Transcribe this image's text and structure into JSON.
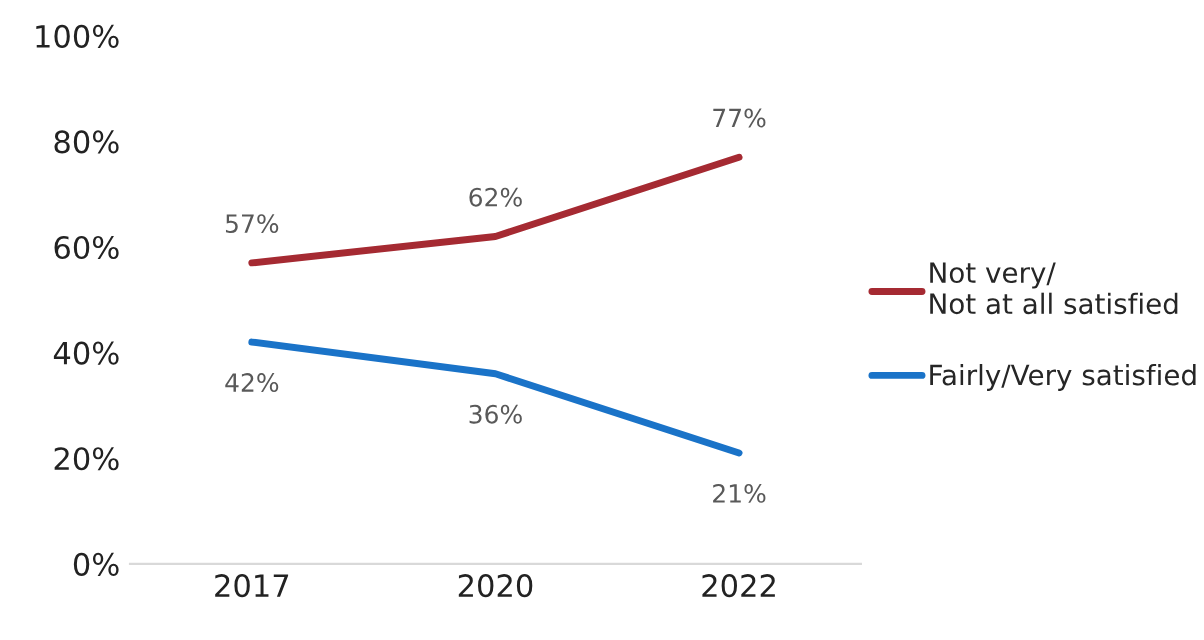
{
  "chart_data": {
    "type": "line",
    "categories": [
      "2017",
      "2020",
      "2022"
    ],
    "series": [
      {
        "name": "Not very/\nNot at all satisfied",
        "color": "#a52a32",
        "values": [
          57,
          62,
          77
        ],
        "value_labels": [
          "57%",
          "62%",
          "77%"
        ]
      },
      {
        "name": "Fairly/Very satisfied",
        "color": "#1a73c8",
        "values": [
          42,
          36,
          21
        ],
        "value_labels": [
          "42%",
          "36%",
          "21%"
        ]
      }
    ],
    "ylim": [
      0,
      100
    ],
    "yticks": [
      {
        "value": 0,
        "label": "0%"
      },
      {
        "value": 20,
        "label": "20%"
      },
      {
        "value": 40,
        "label": "40%"
      },
      {
        "value": 60,
        "label": "60%"
      },
      {
        "value": 80,
        "label": "80%"
      },
      {
        "value": 100,
        "label": "100%"
      }
    ],
    "grid": false,
    "legend": "right",
    "marker": "none",
    "line_style": "solid"
  }
}
